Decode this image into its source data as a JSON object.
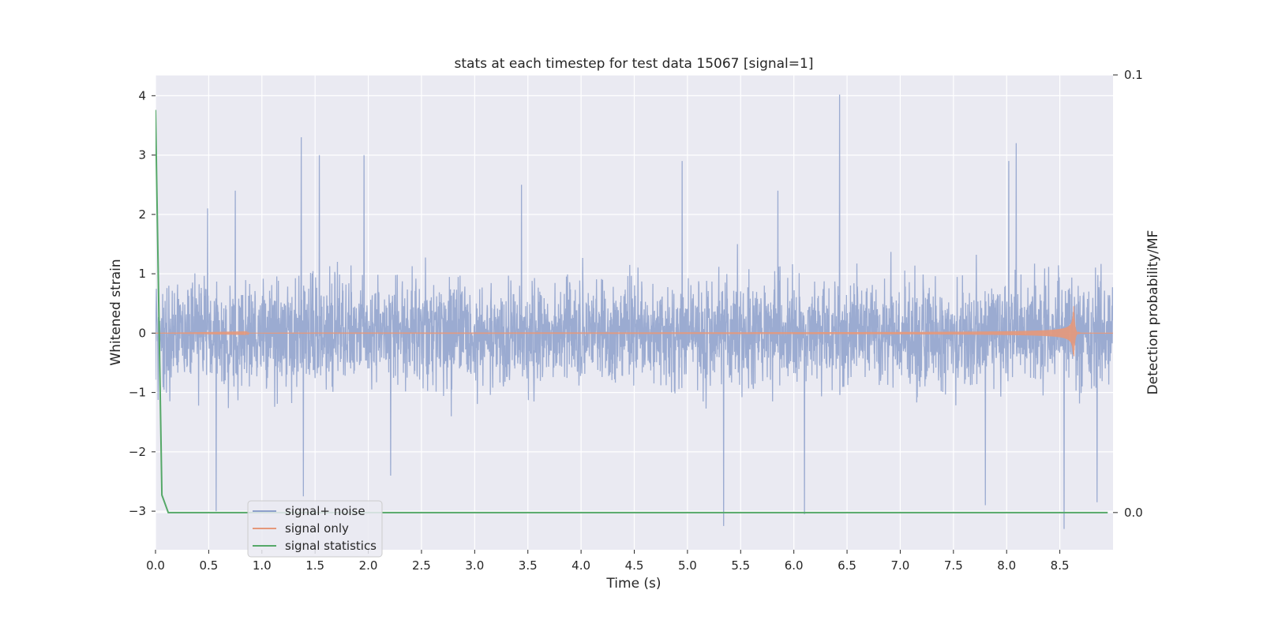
{
  "chart_data": {
    "type": "line",
    "title": "stats at each timestep for test data 15067 [signal=1]",
    "xlabel": "Time (s)",
    "ylabel": "Whitened strain",
    "y2label": "Detection probability/MF",
    "xlim": [
      0.0,
      9.0
    ],
    "ylim": [
      -3.65,
      4.35
    ],
    "y2lim": [
      -0.0085,
      0.1
    ],
    "x_ticks": [
      "0.0",
      "0.5",
      "1.0",
      "1.5",
      "2.0",
      "2.5",
      "3.0",
      "3.5",
      "4.0",
      "4.5",
      "5.0",
      "5.5",
      "6.0",
      "6.5",
      "7.0",
      "7.5",
      "8.0",
      "8.5"
    ],
    "x_tick_values": [
      0.0,
      0.5,
      1.0,
      1.5,
      2.0,
      2.5,
      3.0,
      3.5,
      4.0,
      4.5,
      5.0,
      5.5,
      6.0,
      6.5,
      7.0,
      7.5,
      8.0,
      8.5
    ],
    "y_ticks": [
      "−3",
      "−2",
      "−1",
      "0",
      "1",
      "2",
      "3",
      "4"
    ],
    "y_tick_values": [
      -3,
      -2,
      -1,
      0,
      1,
      2,
      3,
      4
    ],
    "y2_ticks": [
      "0.0",
      "0.1"
    ],
    "y2_tick_values": [
      0.0,
      0.1
    ],
    "grid": true,
    "legend_position": "lower-left",
    "series": [
      {
        "name": "signal+ noise",
        "axis": "left",
        "color": "#8da0cb",
        "kind": "noise",
        "sample_rate": 2048,
        "typical_band": [
          -1.1,
          1.1
        ],
        "peaks": [
          {
            "x": 0.49,
            "y": 2.1
          },
          {
            "x": 0.75,
            "y": 2.4
          },
          {
            "x": 1.37,
            "y": 3.3
          },
          {
            "x": 1.54,
            "y": 3.0
          },
          {
            "x": 1.96,
            "y": 3.0
          },
          {
            "x": 3.44,
            "y": 2.5
          },
          {
            "x": 4.95,
            "y": 2.9
          },
          {
            "x": 5.85,
            "y": 2.4
          },
          {
            "x": 6.43,
            "y": 4.02
          },
          {
            "x": 8.09,
            "y": 3.2
          },
          {
            "x": 8.02,
            "y": 2.9
          }
        ],
        "troughs": [
          {
            "x": 0.57,
            "y": -3.0
          },
          {
            "x": 1.39,
            "y": -2.75
          },
          {
            "x": 2.21,
            "y": -2.4
          },
          {
            "x": 5.34,
            "y": -3.25
          },
          {
            "x": 6.1,
            "y": -3.05
          },
          {
            "x": 7.8,
            "y": -2.9
          },
          {
            "x": 8.54,
            "y": -3.3
          },
          {
            "x": 8.85,
            "y": -2.85
          }
        ]
      },
      {
        "name": "signal only",
        "axis": "left",
        "color": "#e5987a",
        "kind": "chirp",
        "merger_time": 8.63,
        "amplitude_start": 0.005,
        "amplitude_peak": 0.5,
        "points": [
          {
            "x": 0.0,
            "y": 0.0
          },
          {
            "x": 3.0,
            "y": 0.02
          },
          {
            "x": 5.0,
            "y": 0.05
          },
          {
            "x": 7.0,
            "y": 0.1
          },
          {
            "x": 8.0,
            "y": 0.18
          },
          {
            "x": 8.5,
            "y": 0.3
          },
          {
            "x": 8.63,
            "y": 0.5
          },
          {
            "x": 8.7,
            "y": 0.02
          },
          {
            "x": 9.0,
            "y": 0.0
          }
        ]
      },
      {
        "name": "signal statistics",
        "axis": "right",
        "color": "#55a868",
        "kind": "line",
        "points": [
          {
            "x": 0.0,
            "y": 0.092
          },
          {
            "x": 0.06,
            "y": 0.004
          },
          {
            "x": 0.12,
            "y": 0.0
          },
          {
            "x": 1.0,
            "y": 0.0
          },
          {
            "x": 3.0,
            "y": 0.0
          },
          {
            "x": 5.0,
            "y": 0.0
          },
          {
            "x": 7.0,
            "y": 0.0
          },
          {
            "x": 8.95,
            "y": 0.0
          }
        ]
      }
    ]
  }
}
